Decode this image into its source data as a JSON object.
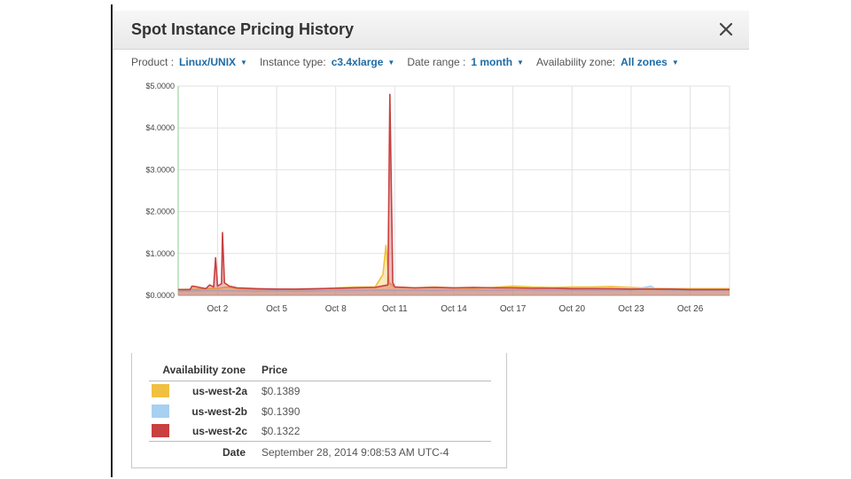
{
  "dialog": {
    "title": "Spot Instance Pricing History",
    "close_icon": "close-icon"
  },
  "filters": {
    "product": {
      "label": "Product :",
      "value": "Linux/UNIX"
    },
    "instance_type": {
      "label": "Instance type:",
      "value": "c3.4xlarge"
    },
    "date_range": {
      "label": "Date range :",
      "value": "1 month"
    },
    "availability_zone": {
      "label": "Availability zone:",
      "value": "All zones"
    }
  },
  "chart_data": {
    "type": "line",
    "yticks": [
      "$5.0000",
      "$4.0000",
      "$3.0000",
      "$2.0000",
      "$1.0000",
      "$0.0000"
    ],
    "ylim": [
      0,
      5
    ],
    "xticks": [
      {
        "label": "Oct 2",
        "day": 2
      },
      {
        "label": "Oct 5",
        "day": 5
      },
      {
        "label": "Oct 8",
        "day": 8
      },
      {
        "label": "Oct 11",
        "day": 11
      },
      {
        "label": "Oct 14",
        "day": 14
      },
      {
        "label": "Oct 17",
        "day": 17
      },
      {
        "label": "Oct 20",
        "day": 20
      },
      {
        "label": "Oct 23",
        "day": 23
      },
      {
        "label": "Oct 26",
        "day": 26
      }
    ],
    "xlim": [
      0,
      28
    ],
    "grid": true,
    "series": [
      {
        "name": "us-west-2a",
        "color": "#f0c040",
        "points": [
          [
            0,
            0.14
          ],
          [
            1,
            0.15
          ],
          [
            2,
            0.17
          ],
          [
            2.5,
            0.2
          ],
          [
            3,
            0.16
          ],
          [
            4,
            0.14
          ],
          [
            5,
            0.15
          ],
          [
            6,
            0.14
          ],
          [
            7,
            0.15
          ],
          [
            8,
            0.18
          ],
          [
            9,
            0.2
          ],
          [
            10,
            0.2
          ],
          [
            10.4,
            0.5
          ],
          [
            10.55,
            1.2
          ],
          [
            10.7,
            0.3
          ],
          [
            11,
            0.2
          ],
          [
            12,
            0.18
          ],
          [
            13,
            0.2
          ],
          [
            14,
            0.18
          ],
          [
            15,
            0.17
          ],
          [
            16,
            0.19
          ],
          [
            17,
            0.22
          ],
          [
            18,
            0.2
          ],
          [
            19,
            0.19
          ],
          [
            20,
            0.2
          ],
          [
            21,
            0.2
          ],
          [
            22,
            0.21
          ],
          [
            23,
            0.19
          ],
          [
            24,
            0.17
          ],
          [
            25,
            0.16
          ],
          [
            26,
            0.16
          ],
          [
            28,
            0.16
          ]
        ]
      },
      {
        "name": "us-west-2b",
        "color": "#a8d0f0",
        "points": [
          [
            0,
            0.1
          ],
          [
            1,
            0.11
          ],
          [
            2,
            0.12
          ],
          [
            3,
            0.11
          ],
          [
            4,
            0.1
          ],
          [
            5,
            0.11
          ],
          [
            6,
            0.1
          ],
          [
            7,
            0.11
          ],
          [
            8,
            0.12
          ],
          [
            9,
            0.12
          ],
          [
            10,
            0.13
          ],
          [
            11,
            0.12
          ],
          [
            12,
            0.13
          ],
          [
            13,
            0.12
          ],
          [
            14,
            0.13
          ],
          [
            15,
            0.13
          ],
          [
            16,
            0.12
          ],
          [
            17,
            0.13
          ],
          [
            18,
            0.13
          ],
          [
            19,
            0.12
          ],
          [
            20,
            0.13
          ],
          [
            21,
            0.12
          ],
          [
            22,
            0.13
          ],
          [
            23,
            0.13
          ],
          [
            24,
            0.22
          ],
          [
            24.3,
            0.14
          ],
          [
            25,
            0.13
          ],
          [
            26,
            0.12
          ],
          [
            28,
            0.13
          ]
        ]
      },
      {
        "name": "us-west-2c",
        "color": "#c84040",
        "points": [
          [
            0,
            0.14
          ],
          [
            0.6,
            0.14
          ],
          [
            0.7,
            0.22
          ],
          [
            1,
            0.2
          ],
          [
            1.4,
            0.16
          ],
          [
            1.6,
            0.25
          ],
          [
            1.8,
            0.2
          ],
          [
            1.9,
            0.9
          ],
          [
            2.0,
            0.22
          ],
          [
            2.2,
            0.28
          ],
          [
            2.25,
            1.5
          ],
          [
            2.35,
            0.3
          ],
          [
            2.6,
            0.22
          ],
          [
            3,
            0.18
          ],
          [
            4,
            0.16
          ],
          [
            5,
            0.15
          ],
          [
            6,
            0.15
          ],
          [
            7,
            0.16
          ],
          [
            8,
            0.17
          ],
          [
            9,
            0.18
          ],
          [
            10,
            0.19
          ],
          [
            10.65,
            0.25
          ],
          [
            10.75,
            4.8
          ],
          [
            10.9,
            0.3
          ],
          [
            11,
            0.2
          ],
          [
            12,
            0.18
          ],
          [
            13,
            0.19
          ],
          [
            14,
            0.18
          ],
          [
            15,
            0.19
          ],
          [
            16,
            0.18
          ],
          [
            17,
            0.18
          ],
          [
            18,
            0.17
          ],
          [
            19,
            0.17
          ],
          [
            20,
            0.16
          ],
          [
            21,
            0.16
          ],
          [
            22,
            0.16
          ],
          [
            23,
            0.15
          ],
          [
            24,
            0.15
          ],
          [
            25,
            0.15
          ],
          [
            26,
            0.14
          ],
          [
            28,
            0.14
          ]
        ]
      }
    ]
  },
  "legend": {
    "zone_header": "Availability zone",
    "price_header": "Price",
    "rows": [
      {
        "zone": "us-west-2a",
        "price": "$0.1389",
        "color": "#f0c040"
      },
      {
        "zone": "us-west-2b",
        "price": "$0.1390",
        "color": "#a8d0f0"
      },
      {
        "zone": "us-west-2c",
        "price": "$0.1322",
        "color": "#c84040"
      }
    ],
    "date_label": "Date",
    "date_value": "September 28, 2014 9:08:53 AM UTC-4"
  }
}
